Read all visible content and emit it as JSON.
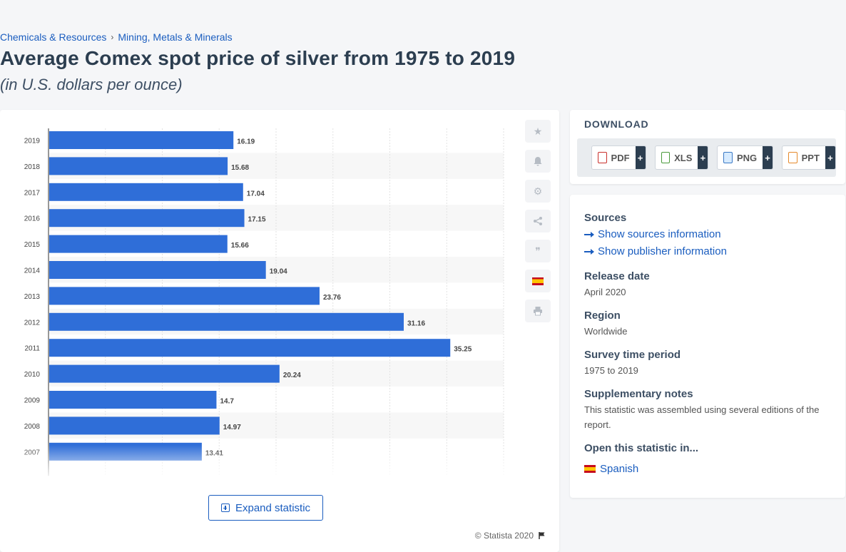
{
  "breadcrumb": {
    "item1": "Chemicals & Resources",
    "separator": "›",
    "item2": "Mining, Metals & Minerals"
  },
  "header": {
    "title": "Average Comex spot price of silver from 1975 to 2019",
    "subtitle": "(in U.S. dollars per ounce)"
  },
  "chart_data": {
    "type": "bar",
    "orientation": "horizontal",
    "categories": [
      "2019",
      "2018",
      "2017",
      "2016",
      "2015",
      "2014",
      "2013",
      "2012",
      "2011",
      "2010",
      "2009",
      "2008",
      "2007"
    ],
    "values": [
      16.19,
      15.68,
      17.04,
      17.15,
      15.66,
      19.04,
      23.76,
      31.16,
      35.25,
      20.24,
      14.7,
      14.97,
      13.41
    ],
    "xlim": [
      0,
      40
    ],
    "bar_color": "#2f6ed8",
    "grid": true
  },
  "expand": {
    "label": "Expand statistic"
  },
  "copyright": "© Statista 2020",
  "download": {
    "title": "DOWNLOAD",
    "buttons": [
      {
        "label": "PDF",
        "icon": "pdf-file-icon"
      },
      {
        "label": "XLS",
        "icon": "xls-file-icon"
      },
      {
        "label": "PNG",
        "icon": "png-file-icon"
      },
      {
        "label": "PPT",
        "icon": "ppt-file-icon"
      }
    ],
    "plus": "+"
  },
  "info": {
    "sources_title": "Sources",
    "show_sources": "Show sources information",
    "show_publisher": "Show publisher information",
    "release_title": "Release date",
    "release_value": "April 2020",
    "region_title": "Region",
    "region_value": "Worldwide",
    "survey_title": "Survey time period",
    "survey_value": "1975 to 2019",
    "supp_title": "Supplementary notes",
    "supp_value": "This statistic was assembled using several editions of the report.",
    "open_title": "Open this statistic in...",
    "open_language": "Spanish"
  },
  "colors": {
    "accent": "#1a5dbf",
    "bar": "#2f6ed8"
  }
}
